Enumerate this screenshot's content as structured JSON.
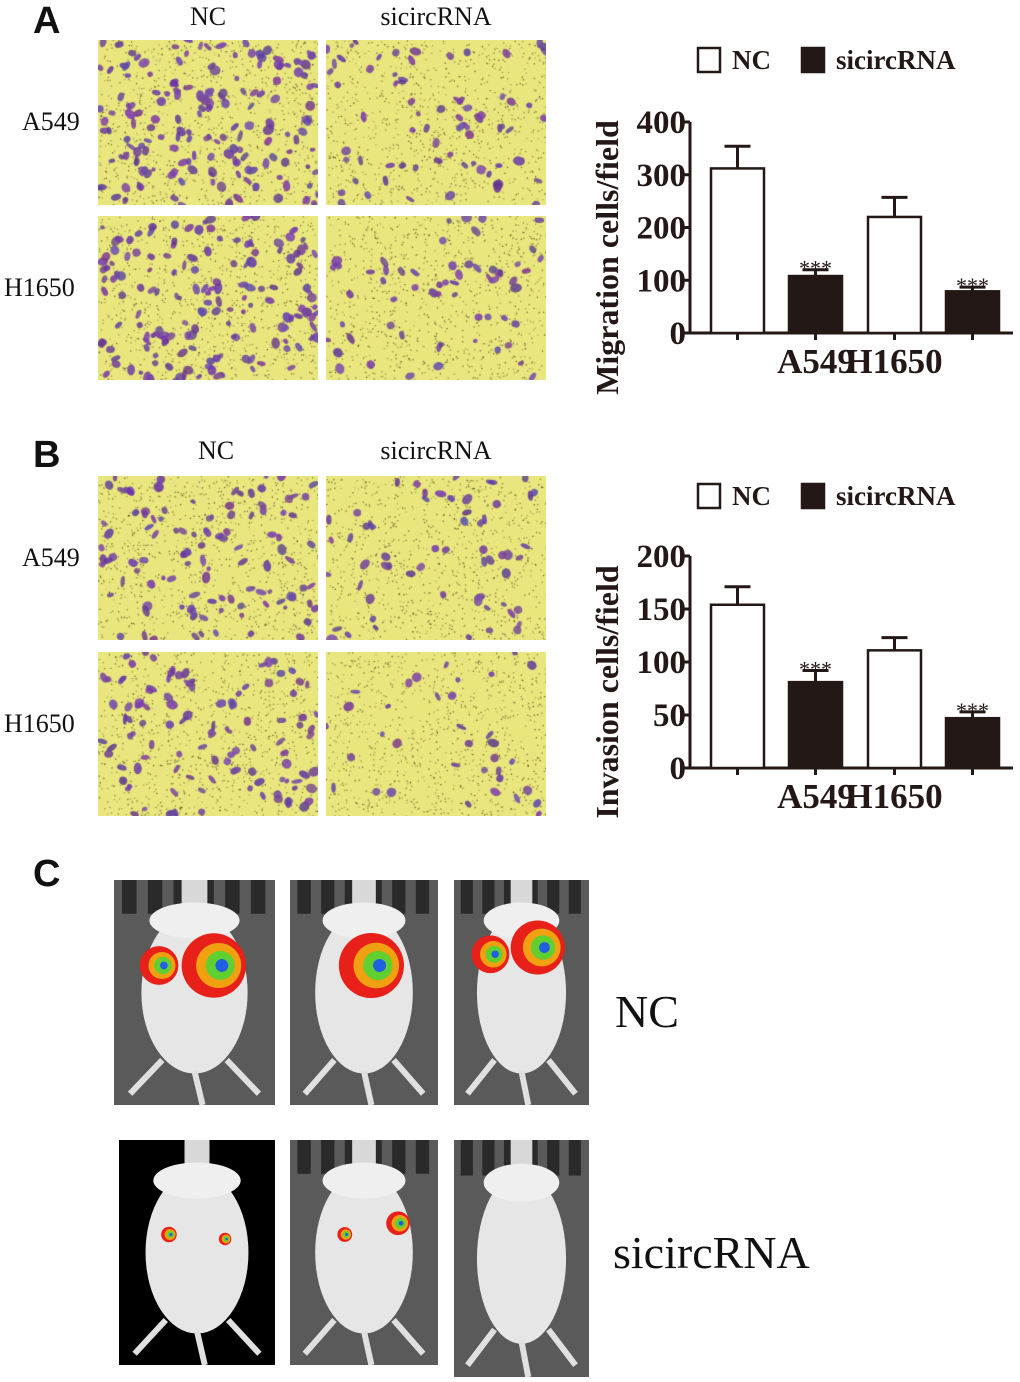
{
  "panels": {
    "A": {
      "label": "A",
      "columns": [
        "NC",
        "sicircRNA"
      ],
      "rows": [
        "A549",
        "H1650"
      ]
    },
    "B": {
      "label": "B",
      "columns": [
        "NC",
        "sicircRNA"
      ],
      "rows": [
        "A549",
        "H1650"
      ]
    },
    "C": {
      "label": "C",
      "rows": [
        "NC",
        "sicircRNA"
      ]
    }
  },
  "chart_data": [
    {
      "type": "bar",
      "panel": "A",
      "ylabel": "Migration cells/field",
      "categories": [
        "A549",
        "H1650"
      ],
      "ylim": [
        0,
        400
      ],
      "yticks": [
        "0",
        "100",
        "200",
        "300",
        "400"
      ],
      "legend": "top",
      "series": [
        {
          "name": "NC",
          "color": "#ffffff",
          "values": [
            312,
            220
          ],
          "errors": [
            42,
            37
          ],
          "annotations": [
            "",
            ""
          ]
        },
        {
          "name": "sicircRNA",
          "color": "#231815",
          "values": [
            108,
            79
          ],
          "errors": [
            12,
            8
          ],
          "annotations": [
            "***",
            "***"
          ]
        }
      ]
    },
    {
      "type": "bar",
      "panel": "B",
      "ylabel": "Invasion cells/field",
      "categories": [
        "A549",
        "H1650"
      ],
      "ylim": [
        0,
        200
      ],
      "yticks": [
        "0",
        "50",
        "100",
        "150",
        "200"
      ],
      "legend": "top",
      "series": [
        {
          "name": "NC",
          "color": "#ffffff",
          "values": [
            154,
            111
          ],
          "errors": [
            17,
            12
          ],
          "annotations": [
            "",
            ""
          ]
        },
        {
          "name": "sicircRNA",
          "color": "#231815",
          "values": [
            81,
            47
          ],
          "errors": [
            11,
            6
          ],
          "annotations": [
            "***",
            "***"
          ]
        }
      ]
    }
  ]
}
